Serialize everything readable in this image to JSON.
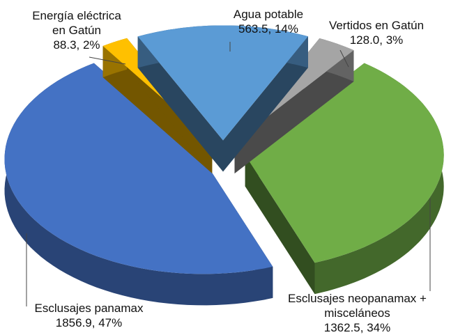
{
  "chart_data": {
    "type": "pie3d",
    "categories": [
      "Agua potable",
      "Vertidos en Gatún",
      "Esclusajes neopanamax + misceláneos",
      "Esclusajes panamax",
      "Energía eléctrica en Gatún"
    ],
    "values": [
      563.5,
      128.0,
      1362.5,
      1856.9,
      88.3
    ],
    "value_labels": [
      "563.5, 14%",
      "128.0, 3%",
      "1362.5, 34%",
      "1856.9, 47%",
      "88.3, 2%"
    ],
    "colors": [
      "#5b9bd5",
      "#a5a5a5",
      "#70ad47",
      "#4472c4",
      "#ffc000"
    ]
  }
}
